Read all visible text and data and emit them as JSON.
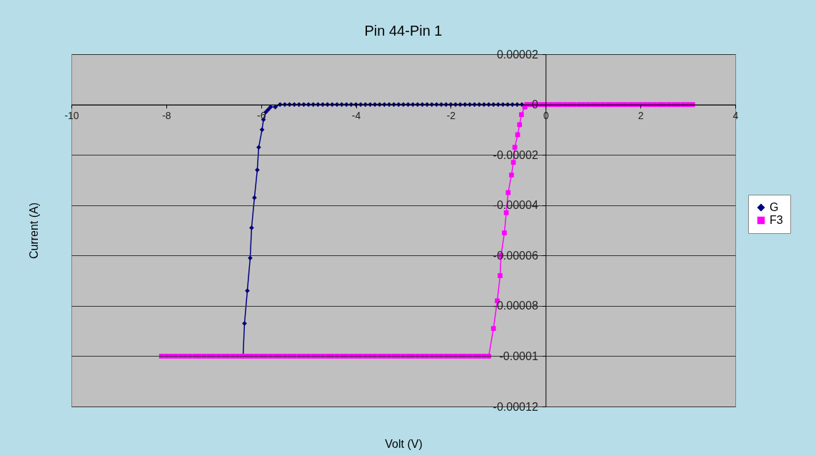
{
  "chart_data": {
    "type": "line",
    "title": "Pin 44-Pin 1",
    "xlabel": "Volt (V)",
    "ylabel": "Current (A)",
    "xlim": [
      -10,
      4
    ],
    "xticks": [
      -10,
      -8,
      -6,
      -4,
      -2,
      0,
      2,
      4
    ],
    "ylim": [
      -0.00012,
      2e-05
    ],
    "yticks": [
      {
        "value": 2e-05,
        "label": "0.00002"
      },
      0,
      {
        "value": -2e-05,
        "label": "-0.00002"
      },
      {
        "value": -4e-05,
        "label": "-0.00004"
      },
      {
        "value": -6e-05,
        "label": "-0.00006"
      },
      {
        "value": -8e-05,
        "label": "-0.00008"
      },
      {
        "value": -0.0001,
        "label": "-0.0001"
      },
      {
        "value": -0.00012,
        "label": "-0.00012"
      }
    ],
    "grid": "y",
    "legend": "right",
    "line_style": "solid",
    "series": [
      {
        "name": "G",
        "color": "#000080",
        "marker": "diamond",
        "x": [
          -6.38,
          -6.35,
          -6.29,
          -6.23,
          -6.2,
          -6.14,
          -6.08,
          -6.05,
          -5.98,
          -5.95,
          -5.9,
          -5.85,
          -5.8,
          -5.7,
          -5.6,
          -5.5,
          -5.4,
          -5.3,
          -5.2,
          -5.1,
          -5,
          -4.9,
          -4.8,
          -4.7,
          -4.6,
          -4.5,
          -4.4,
          -4.3,
          -4.2,
          -4.1,
          -4,
          -3.9,
          -3.8,
          -3.7,
          -3.6,
          -3.5,
          -3.4,
          -3.3,
          -3.2,
          -3.1,
          -3,
          -2.9,
          -2.8,
          -2.7,
          -2.6,
          -2.5,
          -2.4,
          -2.3,
          -2.2,
          -2.1,
          -2,
          -1.9,
          -1.8,
          -1.7,
          -1.6,
          -1.5,
          -1.4,
          -1.3,
          -1.2,
          -1.1,
          -1,
          -0.9,
          -0.8,
          -0.7,
          -0.6,
          -0.5
        ],
        "values": [
          -0.0001,
          -8.7e-05,
          -7.4e-05,
          -6.1e-05,
          -4.9e-05,
          -3.7e-05,
          -2.6e-05,
          -1.7e-05,
          -1e-05,
          -6e-06,
          -3e-06,
          -2e-06,
          -1e-06,
          -1e-06,
          0,
          0,
          0,
          0,
          0,
          0,
          0,
          0,
          0,
          0,
          0,
          0,
          0,
          0,
          0,
          0,
          0,
          0,
          0,
          0,
          0,
          0,
          0,
          0,
          0,
          0,
          0,
          0,
          0,
          0,
          0,
          0,
          0,
          0,
          0,
          0,
          0,
          0,
          0,
          0,
          0,
          0,
          0,
          0,
          0,
          0,
          0,
          0,
          0,
          0,
          0,
          0
        ]
      },
      {
        "name": "F3",
        "color": "#ff00ff",
        "marker": "square",
        "x": [
          -8.1,
          -8,
          -7.9,
          -7.8,
          -7.7,
          -7.6,
          -7.5,
          -7.4,
          -7.3,
          -7.2,
          -7.1,
          -7,
          -6.9,
          -6.8,
          -6.7,
          -6.6,
          -6.5,
          -6.4,
          -6.3,
          -6.2,
          -6.1,
          -6,
          -5.9,
          -5.8,
          -5.7,
          -5.6,
          -5.5,
          -5.4,
          -5.3,
          -5.2,
          -5.1,
          -5,
          -4.9,
          -4.8,
          -4.7,
          -4.6,
          -4.5,
          -4.4,
          -4.3,
          -4.2,
          -4.1,
          -4,
          -3.9,
          -3.8,
          -3.7,
          -3.6,
          -3.5,
          -3.4,
          -3.3,
          -3.2,
          -3.1,
          -3,
          -2.9,
          -2.8,
          -2.7,
          -2.6,
          -2.5,
          -2.4,
          -2.3,
          -2.2,
          -2.1,
          -2,
          -1.9,
          -1.8,
          -1.7,
          -1.6,
          -1.5,
          -1.4,
          -1.3,
          -1.2,
          -1.1,
          -1.02,
          -0.96,
          -0.94,
          -0.87,
          -0.83,
          -0.79,
          -0.72,
          -0.68,
          -0.65,
          -0.59,
          -0.55,
          -0.51,
          -0.44,
          -0.4,
          -0.3,
          -0.2,
          -0.1,
          0,
          0.1,
          0.2,
          0.3,
          0.4,
          0.5,
          0.6,
          0.7,
          0.8,
          0.9,
          1,
          1.1,
          1.2,
          1.3,
          1.4,
          1.5,
          1.6,
          1.7,
          1.8,
          1.9,
          2,
          2.1,
          2.2,
          2.3,
          2.4,
          2.5,
          2.6,
          2.7,
          2.8,
          2.9,
          3,
          3.1
        ],
        "values": [
          -0.0001,
          -0.0001,
          -0.0001,
          -0.0001,
          -0.0001,
          -0.0001,
          -0.0001,
          -0.0001,
          -0.0001,
          -0.0001,
          -0.0001,
          -0.0001,
          -0.0001,
          -0.0001,
          -0.0001,
          -0.0001,
          -0.0001,
          -0.0001,
          -0.0001,
          -0.0001,
          -0.0001,
          -0.0001,
          -0.0001,
          -0.0001,
          -0.0001,
          -0.0001,
          -0.0001,
          -0.0001,
          -0.0001,
          -0.0001,
          -0.0001,
          -0.0001,
          -0.0001,
          -0.0001,
          -0.0001,
          -0.0001,
          -0.0001,
          -0.0001,
          -0.0001,
          -0.0001,
          -0.0001,
          -0.0001,
          -0.0001,
          -0.0001,
          -0.0001,
          -0.0001,
          -0.0001,
          -0.0001,
          -0.0001,
          -0.0001,
          -0.0001,
          -0.0001,
          -0.0001,
          -0.0001,
          -0.0001,
          -0.0001,
          -0.0001,
          -0.0001,
          -0.0001,
          -0.0001,
          -0.0001,
          -0.0001,
          -0.0001,
          -0.0001,
          -0.0001,
          -0.0001,
          -0.0001,
          -0.0001,
          -0.0001,
          -0.0001,
          -8.9e-05,
          -7.8e-05,
          -6.8e-05,
          -6e-05,
          -5.1e-05,
          -4.3e-05,
          -3.5e-05,
          -2.8e-05,
          -2.3e-05,
          -1.7e-05,
          -1.2e-05,
          -8e-06,
          -4e-06,
          -1e-06,
          0,
          0,
          0,
          0,
          0,
          0,
          0,
          0,
          0,
          0,
          0,
          0,
          0,
          0,
          0,
          0,
          0,
          0,
          0,
          0,
          0,
          0,
          0,
          0,
          0,
          0,
          0,
          0,
          0,
          0,
          0,
          0,
          0,
          0,
          0,
          0
        ]
      }
    ]
  }
}
